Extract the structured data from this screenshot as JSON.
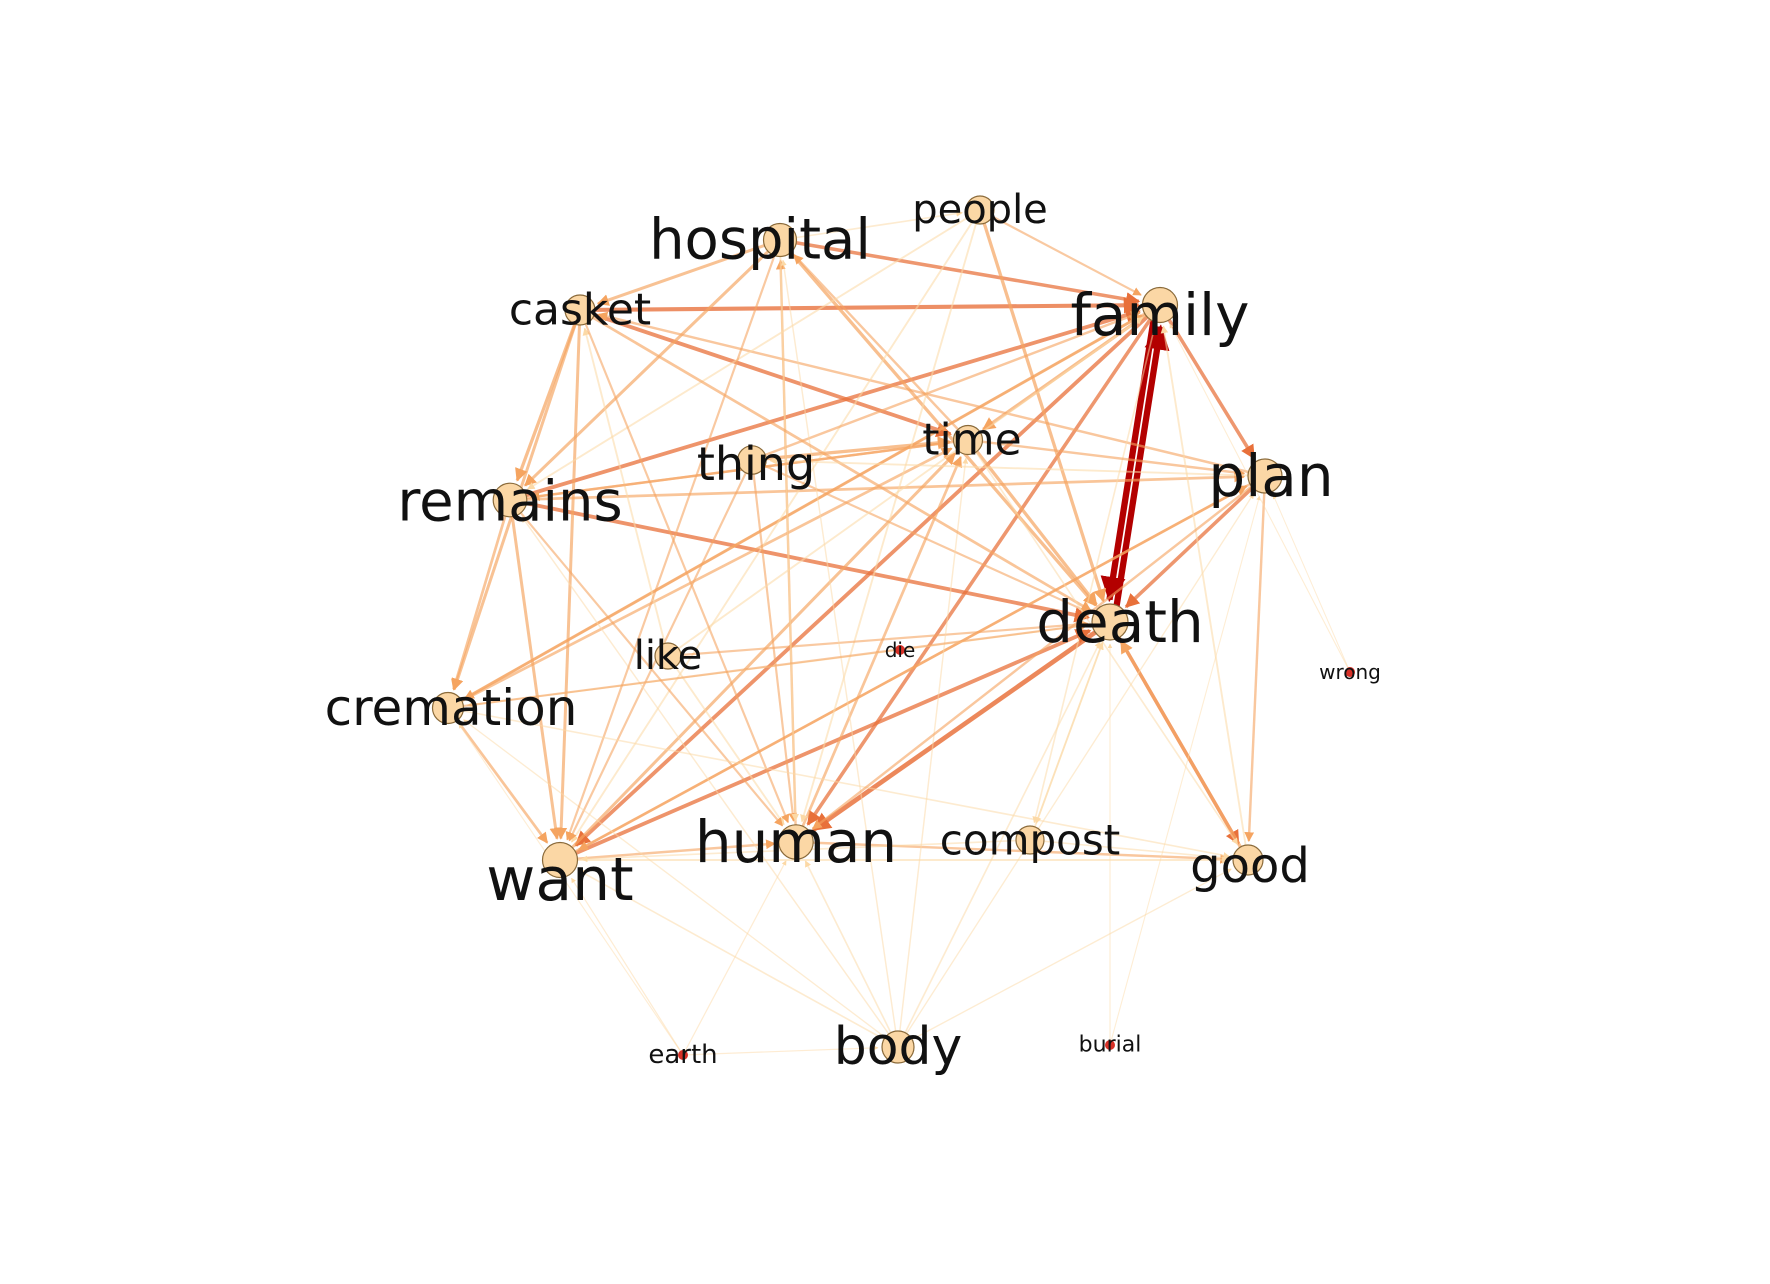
{
  "colors": {
    "edge_light": "#fcd9a6",
    "edge_mid": "#f5a460",
    "edge_strong": "#e8703a",
    "edge_max": "#b30000",
    "node_fill": "#fbd7a5",
    "node_stroke": "#8a6a3a",
    "node_small": "#d73027",
    "background": "#ffffff"
  },
  "nodes": [
    {
      "id": "hospital",
      "label": "hospital",
      "weight": 0.85
    },
    {
      "id": "people",
      "label": "people",
      "weight": 0.6
    },
    {
      "id": "family",
      "label": "family",
      "weight": 0.95
    },
    {
      "id": "casket",
      "label": "casket",
      "weight": 0.7
    },
    {
      "id": "time",
      "label": "time",
      "weight": 0.65
    },
    {
      "id": "thing",
      "label": "thing",
      "weight": 0.62
    },
    {
      "id": "plan",
      "label": "plan",
      "weight": 0.9
    },
    {
      "id": "remains",
      "label": "remains",
      "weight": 0.88
    },
    {
      "id": "death",
      "label": "death",
      "weight": 1.0
    },
    {
      "id": "like",
      "label": "like",
      "weight": 0.5
    },
    {
      "id": "die",
      "label": "die",
      "weight": 0.2
    },
    {
      "id": "wrong",
      "label": "wrong",
      "weight": 0.15
    },
    {
      "id": "cremation",
      "label": "cremation",
      "weight": 0.75
    },
    {
      "id": "human",
      "label": "human",
      "weight": 0.92
    },
    {
      "id": "compost",
      "label": "compost",
      "weight": 0.6
    },
    {
      "id": "good",
      "label": "good",
      "weight": 0.7
    },
    {
      "id": "want",
      "label": "want",
      "weight": 0.95
    },
    {
      "id": "earth",
      "label": "earth",
      "weight": 0.2
    },
    {
      "id": "body",
      "label": "body",
      "weight": 0.8
    },
    {
      "id": "burial",
      "label": "burial",
      "weight": 0.18
    }
  ],
  "edges": [
    {
      "source": "family",
      "target": "death",
      "weight": 1.0
    },
    {
      "source": "death",
      "target": "family",
      "weight": 1.0
    },
    {
      "source": "death",
      "target": "human",
      "weight": 0.7
    },
    {
      "source": "casket",
      "target": "family",
      "weight": 0.6
    },
    {
      "source": "hospital",
      "target": "family",
      "weight": 0.5
    },
    {
      "source": "casket",
      "target": "time",
      "weight": 0.55
    },
    {
      "source": "remains",
      "target": "death",
      "weight": 0.55
    },
    {
      "source": "remains",
      "target": "family",
      "weight": 0.55
    },
    {
      "source": "family",
      "target": "plan",
      "weight": 0.5
    },
    {
      "source": "plan",
      "target": "death",
      "weight": 0.5
    },
    {
      "source": "family",
      "target": "want",
      "weight": 0.55
    },
    {
      "source": "want",
      "target": "death",
      "weight": 0.55
    },
    {
      "source": "death",
      "target": "good",
      "weight": 0.5
    },
    {
      "source": "good",
      "target": "death",
      "weight": 0.45
    },
    {
      "source": "family",
      "target": "human",
      "weight": 0.5
    },
    {
      "source": "people",
      "target": "death",
      "weight": 0.45
    },
    {
      "source": "hospital",
      "target": "death",
      "weight": 0.45
    },
    {
      "source": "family",
      "target": "time",
      "weight": 0.45
    },
    {
      "source": "time",
      "target": "death",
      "weight": 0.45
    },
    {
      "source": "thing",
      "target": "time",
      "weight": 0.45
    },
    {
      "source": "casket",
      "target": "remains",
      "weight": 0.45
    },
    {
      "source": "casket",
      "target": "want",
      "weight": 0.4
    },
    {
      "source": "casket",
      "target": "cremation",
      "weight": 0.4
    },
    {
      "source": "hospital",
      "target": "casket",
      "weight": 0.4
    },
    {
      "source": "hospital",
      "target": "remains",
      "weight": 0.4
    },
    {
      "source": "remains",
      "target": "cremation",
      "weight": 0.35
    },
    {
      "source": "remains",
      "target": "want",
      "weight": 0.4
    },
    {
      "source": "remains",
      "target": "plan",
      "weight": 0.35
    },
    {
      "source": "cremation",
      "target": "want",
      "weight": 0.35
    },
    {
      "source": "cremation",
      "target": "family",
      "weight": 0.4
    },
    {
      "source": "cremation",
      "target": "time",
      "weight": 0.35
    },
    {
      "source": "want",
      "target": "time",
      "weight": 0.4
    },
    {
      "source": "want",
      "target": "human",
      "weight": 0.3
    },
    {
      "source": "want",
      "target": "plan",
      "weight": 0.35
    },
    {
      "source": "human",
      "target": "time",
      "weight": 0.35
    },
    {
      "source": "human",
      "target": "hospital",
      "weight": 0.3
    },
    {
      "source": "human",
      "target": "good",
      "weight": 0.3
    },
    {
      "source": "plan",
      "target": "want",
      "weight": 0.3
    },
    {
      "source": "plan",
      "target": "casket",
      "weight": 0.3
    },
    {
      "source": "plan",
      "target": "good",
      "weight": 0.3
    },
    {
      "source": "family",
      "target": "cremation",
      "weight": 0.3
    },
    {
      "source": "time",
      "target": "remains",
      "weight": 0.3
    },
    {
      "source": "time",
      "target": "hospital",
      "weight": 0.3
    },
    {
      "source": "people",
      "target": "family",
      "weight": 0.25
    },
    {
      "source": "people",
      "target": "human",
      "weight": 0.2
    },
    {
      "source": "people",
      "target": "want",
      "weight": 0.2
    },
    {
      "source": "people",
      "target": "remains",
      "weight": 0.2
    },
    {
      "source": "thing",
      "target": "family",
      "weight": 0.3
    },
    {
      "source": "thing",
      "target": "death",
      "weight": 0.25
    },
    {
      "source": "thing",
      "target": "human",
      "weight": 0.25
    },
    {
      "source": "thing",
      "target": "want",
      "weight": 0.25
    },
    {
      "source": "like",
      "target": "death",
      "weight": 0.25
    },
    {
      "source": "like",
      "target": "human",
      "weight": 0.2
    },
    {
      "source": "like",
      "target": "family",
      "weight": 0.2
    },
    {
      "source": "like",
      "target": "casket",
      "weight": 0.2
    },
    {
      "source": "die",
      "target": "death",
      "weight": 0.15
    },
    {
      "source": "die",
      "target": "cremation",
      "weight": 0.12
    },
    {
      "source": "compost",
      "target": "death",
      "weight": 0.2
    },
    {
      "source": "compost",
      "target": "want",
      "weight": 0.15
    },
    {
      "source": "compost",
      "target": "good",
      "weight": 0.15
    },
    {
      "source": "family",
      "target": "compost",
      "weight": 0.15
    },
    {
      "source": "body",
      "target": "want",
      "weight": 0.15
    },
    {
      "source": "body",
      "target": "death",
      "weight": 0.15
    },
    {
      "source": "body",
      "target": "human",
      "weight": 0.15
    },
    {
      "source": "body",
      "target": "remains",
      "weight": 0.12
    },
    {
      "source": "body",
      "target": "time",
      "weight": 0.12
    },
    {
      "source": "body",
      "target": "hospital",
      "weight": 0.12
    },
    {
      "source": "body",
      "target": "plan",
      "weight": 0.1
    },
    {
      "source": "body",
      "target": "good",
      "weight": 0.1
    },
    {
      "source": "body",
      "target": "cremation",
      "weight": 0.1
    },
    {
      "source": "earth",
      "target": "want",
      "weight": 0.08
    },
    {
      "source": "earth",
      "target": "body",
      "weight": 0.08
    },
    {
      "source": "earth",
      "target": "human",
      "weight": 0.08
    },
    {
      "source": "earth",
      "target": "cremation",
      "weight": 0.06
    },
    {
      "source": "burial",
      "target": "death",
      "weight": 0.06
    },
    {
      "source": "burial",
      "target": "plan",
      "weight": 0.05
    },
    {
      "source": "wrong",
      "target": "family",
      "weight": 0.05
    },
    {
      "source": "wrong",
      "target": "plan",
      "weight": 0.04
    },
    {
      "source": "hospital",
      "target": "want",
      "weight": 0.25
    },
    {
      "source": "hospital",
      "target": "human",
      "weight": 0.2
    },
    {
      "source": "hospital",
      "target": "people",
      "weight": 0.15
    },
    {
      "source": "casket",
      "target": "death",
      "weight": 0.35
    },
    {
      "source": "casket",
      "target": "human",
      "weight": 0.25
    },
    {
      "source": "remains",
      "target": "human",
      "weight": 0.25
    },
    {
      "source": "remains",
      "target": "time",
      "weight": 0.3
    },
    {
      "source": "cremation",
      "target": "death",
      "weight": 0.25
    },
    {
      "source": "cremation",
      "target": "good",
      "weight": 0.15
    },
    {
      "source": "time",
      "target": "plan",
      "weight": 0.3
    },
    {
      "source": "time",
      "target": "good",
      "weight": 0.15
    },
    {
      "source": "death",
      "target": "compost",
      "weight": 0.15
    },
    {
      "source": "good",
      "target": "family",
      "weight": 0.2
    },
    {
      "source": "plan",
      "target": "human",
      "weight": 0.3
    },
    {
      "source": "plan",
      "target": "thing",
      "weight": 0.2
    },
    {
      "source": "want",
      "target": "good",
      "weight": 0.2
    }
  ]
}
